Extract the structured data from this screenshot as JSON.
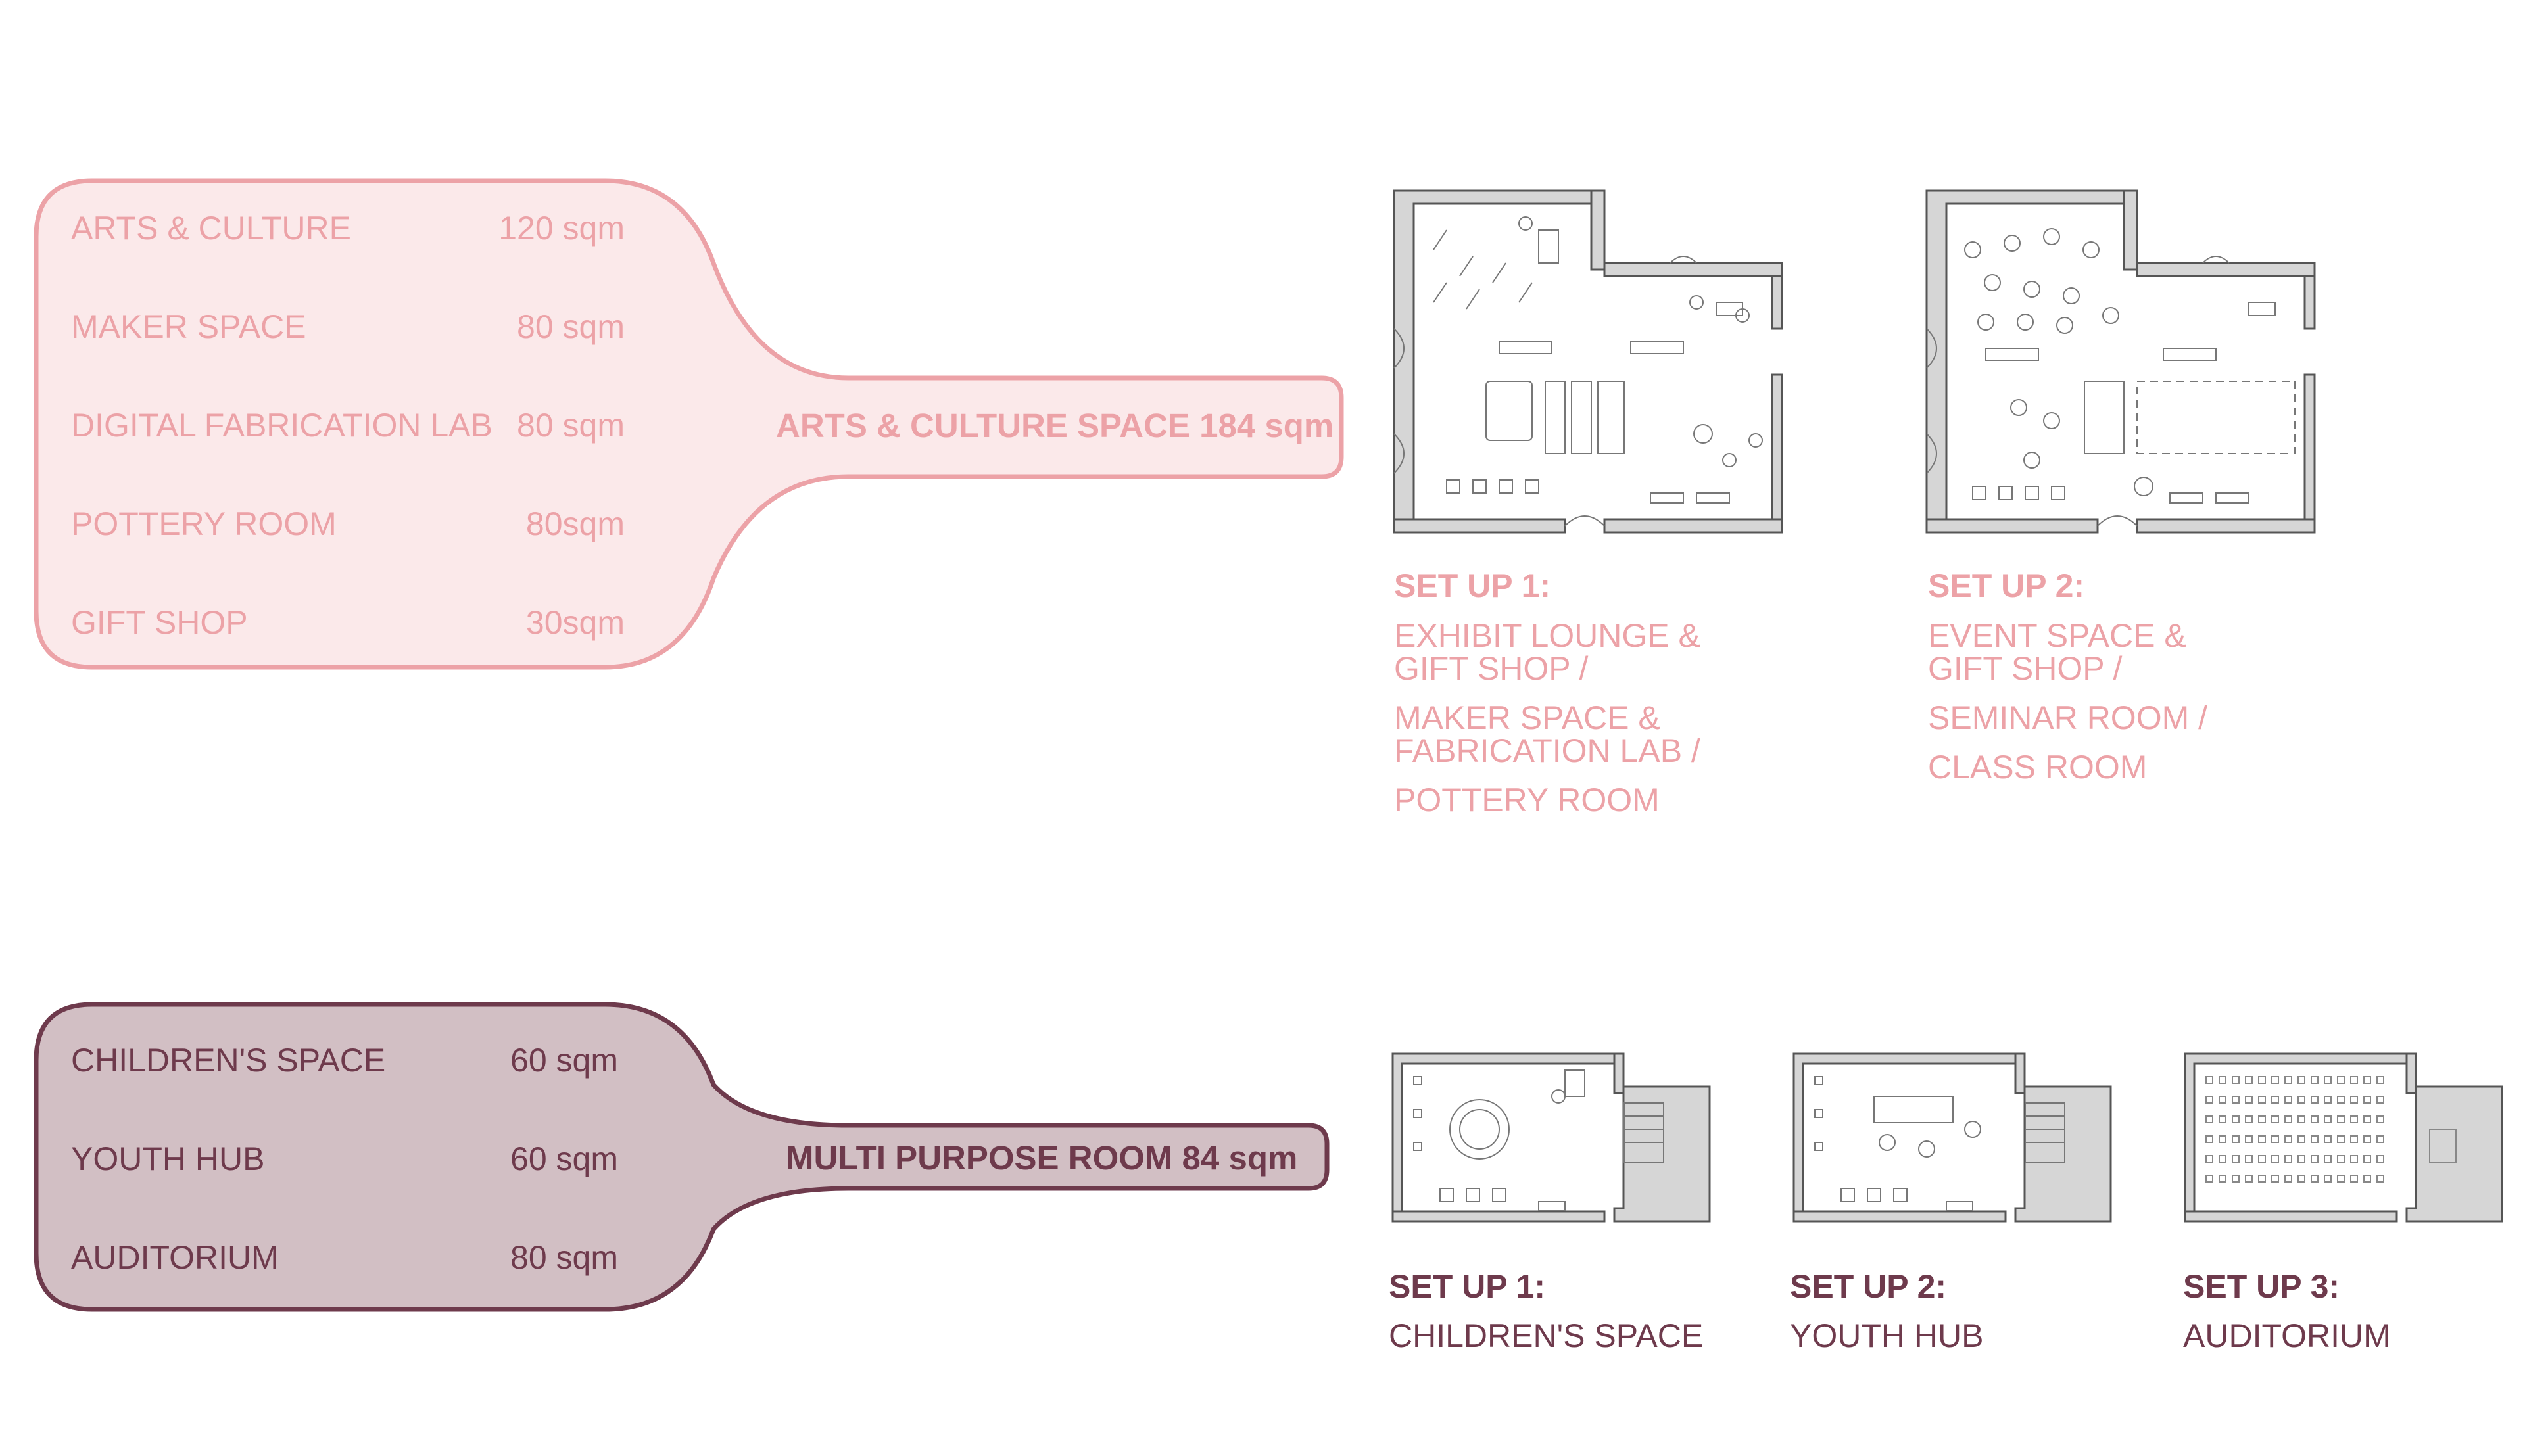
{
  "arts_group": {
    "items": [
      {
        "label": "ARTS & CULTURE",
        "area": "120 sqm"
      },
      {
        "label": "MAKER SPACE",
        "area": "80 sqm"
      },
      {
        "label": "DIGITAL FABRICATION LAB",
        "area": "80 sqm"
      },
      {
        "label": "POTTERY ROOM",
        "area": "80sqm"
      },
      {
        "label": "GIFT SHOP",
        "area": "30sqm"
      }
    ],
    "total_label": "ARTS & CULTURE SPACE  184 sqm",
    "setups": [
      {
        "heading": "SET UP 1:",
        "lines": [
          "EXHIBIT LOUNGE &",
          "GIFT SHOP /",
          "MAKER SPACE &",
          "FABRICATION LAB /",
          "POTTERY ROOM"
        ]
      },
      {
        "heading": "SET UP 2:",
        "lines": [
          "EVENT SPACE &",
          "GIFT SHOP /",
          "SEMINAR ROOM /",
          "CLASS ROOM"
        ]
      }
    ]
  },
  "multi_group": {
    "items": [
      {
        "label": "CHILDREN'S SPACE",
        "area": "60 sqm"
      },
      {
        "label": "YOUTH HUB",
        "area": "60 sqm"
      },
      {
        "label": "AUDITORIUM",
        "area": "80 sqm"
      }
    ],
    "total_label": "MULTI PURPOSE ROOM  84 sqm",
    "setups": [
      {
        "heading": "SET UP 1:",
        "lines": [
          "CHILDREN'S SPACE"
        ]
      },
      {
        "heading": "SET UP 2:",
        "lines": [
          "YOUTH HUB"
        ]
      },
      {
        "heading": "SET UP 3:",
        "lines": [
          "AUDITORIUM"
        ]
      }
    ]
  },
  "colors": {
    "light_fill": "#fbe9ea",
    "light_stroke": "#eca2a7",
    "dark_fill": "#d2bfc4",
    "dark_stroke": "#6e3a4c",
    "wall_fill": "#d6d6d6",
    "line": "#555555"
  }
}
